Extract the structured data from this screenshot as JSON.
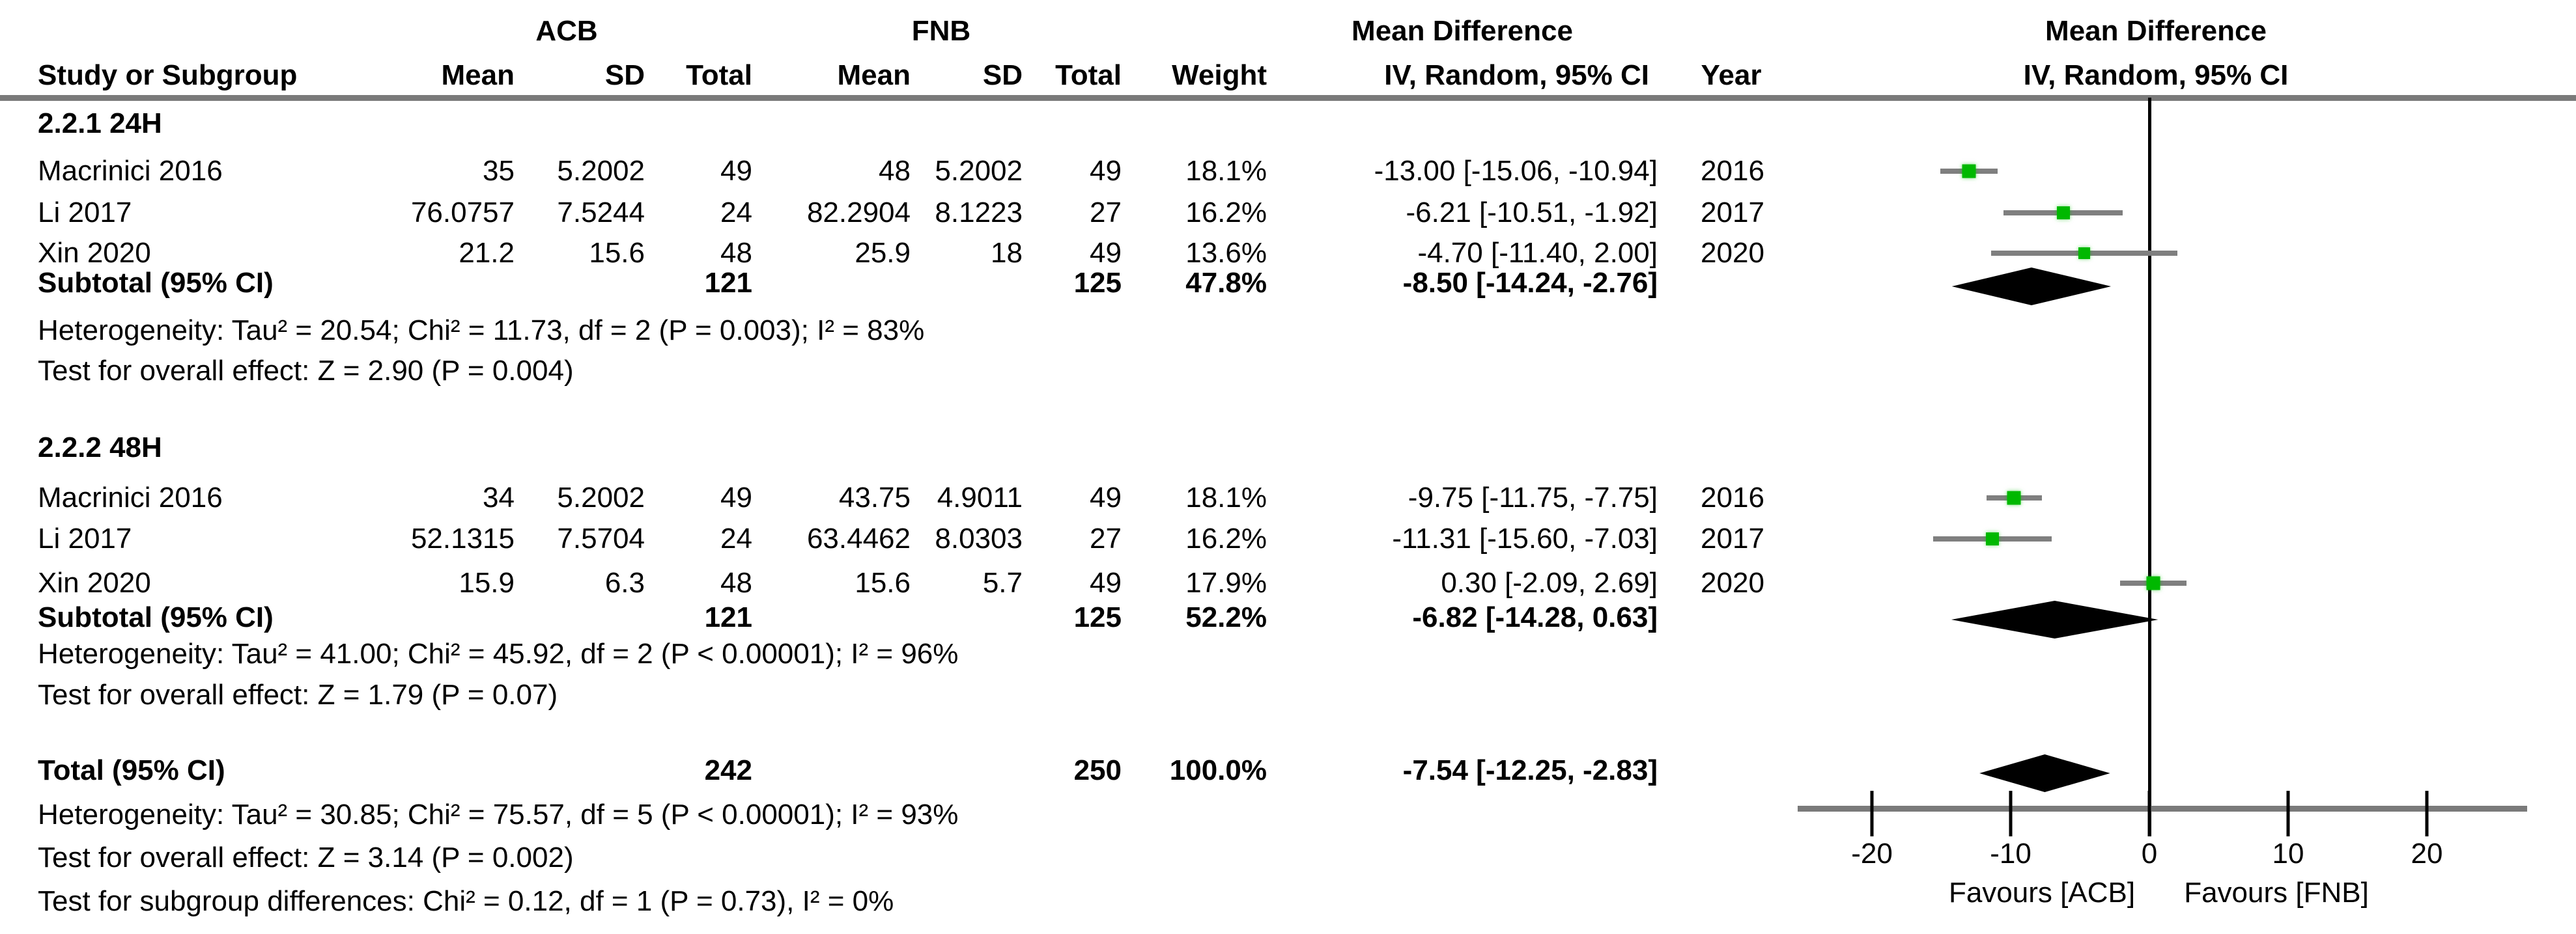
{
  "header": {
    "group1": "ACB",
    "group2": "FNB",
    "col_study": "Study or Subgroup",
    "col_mean": "Mean",
    "col_sd": "SD",
    "col_total": "Total",
    "col_weight": "Weight",
    "md_label": "Mean Difference",
    "md_sub": "IV, Random, 95% CI",
    "col_year": "Year",
    "plot_md_label": "Mean Difference",
    "plot_md_sub": "IV, Random, 95% CI"
  },
  "axis": {
    "ticks": [
      {
        "v": -20,
        "label": "-20"
      },
      {
        "v": -10,
        "label": "-10"
      },
      {
        "v": 0,
        "label": "0"
      },
      {
        "v": 10,
        "label": "10"
      },
      {
        "v": 20,
        "label": "20"
      }
    ],
    "range_min": -25.4,
    "range_max": 27.2,
    "favours_left": "Favours [ACB]",
    "favours_right": "Favours [FNB]"
  },
  "colors": {
    "marker_green": "#00b800",
    "ci_gray": "#7f7f7f",
    "diamond_black": "#000000",
    "zero_line_black": "#000000"
  },
  "chart_data": {
    "type": "forest",
    "effect_measure": "Mean Difference, IV, Random, 95% CI",
    "subgroups": [
      {
        "title": "2.2.1 24H",
        "studies": [
          {
            "study": "Macrinici 2016",
            "acb_mean": "35",
            "acb_sd": "5.2002",
            "acb_total": "49",
            "fnb_mean": "48",
            "fnb_sd": "5.2002",
            "fnb_total": "49",
            "weight": "18.1%",
            "weight_value": 18.1,
            "md": -13.0,
            "ci_low": -15.06,
            "ci_high": -10.94,
            "ci_text": "-13.00 [-15.06, -10.94]",
            "year": "2016"
          },
          {
            "study": "Li 2017",
            "acb_mean": "76.0757",
            "acb_sd": "7.5244",
            "acb_total": "24",
            "fnb_mean": "82.2904",
            "fnb_sd": "8.1223",
            "fnb_total": "27",
            "weight": "16.2%",
            "weight_value": 16.2,
            "md": -6.21,
            "ci_low": -10.51,
            "ci_high": -1.92,
            "ci_text": "-6.21 [-10.51, -1.92]",
            "year": "2017"
          },
          {
            "study": "Xin 2020",
            "acb_mean": "21.2",
            "acb_sd": "15.6",
            "acb_total": "48",
            "fnb_mean": "25.9",
            "fnb_sd": "18",
            "fnb_total": "49",
            "weight": "13.6%",
            "weight_value": 13.6,
            "md": -4.7,
            "ci_low": -11.4,
            "ci_high": 2.0,
            "ci_text": "-4.70 [-11.40, 2.00]",
            "year": "2020"
          }
        ],
        "subtotal": {
          "label": "Subtotal (95% CI)",
          "acb_total": "121",
          "fnb_total": "125",
          "weight": "47.8%",
          "md": -8.5,
          "ci_low": -14.24,
          "ci_high": -2.76,
          "ci_text": "-8.50 [-14.24, -2.76]"
        },
        "heterogeneity": "Heterogeneity: Tau² = 20.54; Chi² = 11.73, df = 2 (P = 0.003); I² = 83%",
        "overall_effect": "Test for overall effect: Z = 2.90 (P = 0.004)"
      },
      {
        "title": "2.2.2 48H",
        "studies": [
          {
            "study": "Macrinici 2016",
            "acb_mean": "34",
            "acb_sd": "5.2002",
            "acb_total": "49",
            "fnb_mean": "43.75",
            "fnb_sd": "4.9011",
            "fnb_total": "49",
            "weight": "18.1%",
            "weight_value": 18.1,
            "md": -9.75,
            "ci_low": -11.75,
            "ci_high": -7.75,
            "ci_text": "-9.75 [-11.75, -7.75]",
            "year": "2016"
          },
          {
            "study": "Li 2017",
            "acb_mean": "52.1315",
            "acb_sd": "7.5704",
            "acb_total": "24",
            "fnb_mean": "63.4462",
            "fnb_sd": "8.0303",
            "fnb_total": "27",
            "weight": "16.2%",
            "weight_value": 16.2,
            "md": -11.31,
            "ci_low": -15.6,
            "ci_high": -7.03,
            "ci_text": "-11.31 [-15.60, -7.03]",
            "year": "2017"
          },
          {
            "study": "Xin 2020",
            "acb_mean": "15.9",
            "acb_sd": "6.3",
            "acb_total": "48",
            "fnb_mean": "15.6",
            "fnb_sd": "5.7",
            "fnb_total": "49",
            "weight": "17.9%",
            "weight_value": 17.9,
            "md": 0.3,
            "ci_low": -2.09,
            "ci_high": 2.69,
            "ci_text": "0.30 [-2.09, 2.69]",
            "year": "2020"
          }
        ],
        "subtotal": {
          "label": "Subtotal (95% CI)",
          "acb_total": "121",
          "fnb_total": "125",
          "weight": "52.2%",
          "md": -6.82,
          "ci_low": -14.28,
          "ci_high": 0.63,
          "ci_text": "-6.82 [-14.28, 0.63]"
        },
        "heterogeneity": "Heterogeneity: Tau² = 41.00; Chi² = 45.92, df = 2 (P < 0.00001); I² = 96%",
        "overall_effect": "Test for overall effect: Z = 1.79 (P = 0.07)"
      }
    ],
    "total": {
      "label": "Total (95% CI)",
      "acb_total": "242",
      "fnb_total": "250",
      "weight": "100.0%",
      "md": -7.54,
      "ci_low": -12.25,
      "ci_high": -2.83,
      "ci_text": "-7.54 [-12.25, -2.83]"
    },
    "total_notes": {
      "heterogeneity": "Heterogeneity: Tau² = 30.85; Chi² = 75.57, df = 5 (P < 0.00001); I² = 93%",
      "overall_effect": "Test for overall effect: Z = 3.14 (P = 0.002)",
      "subgroup_differences": "Test for subgroup differences: Chi² = 0.12, df = 1 (P = 0.73), I² = 0%"
    }
  }
}
